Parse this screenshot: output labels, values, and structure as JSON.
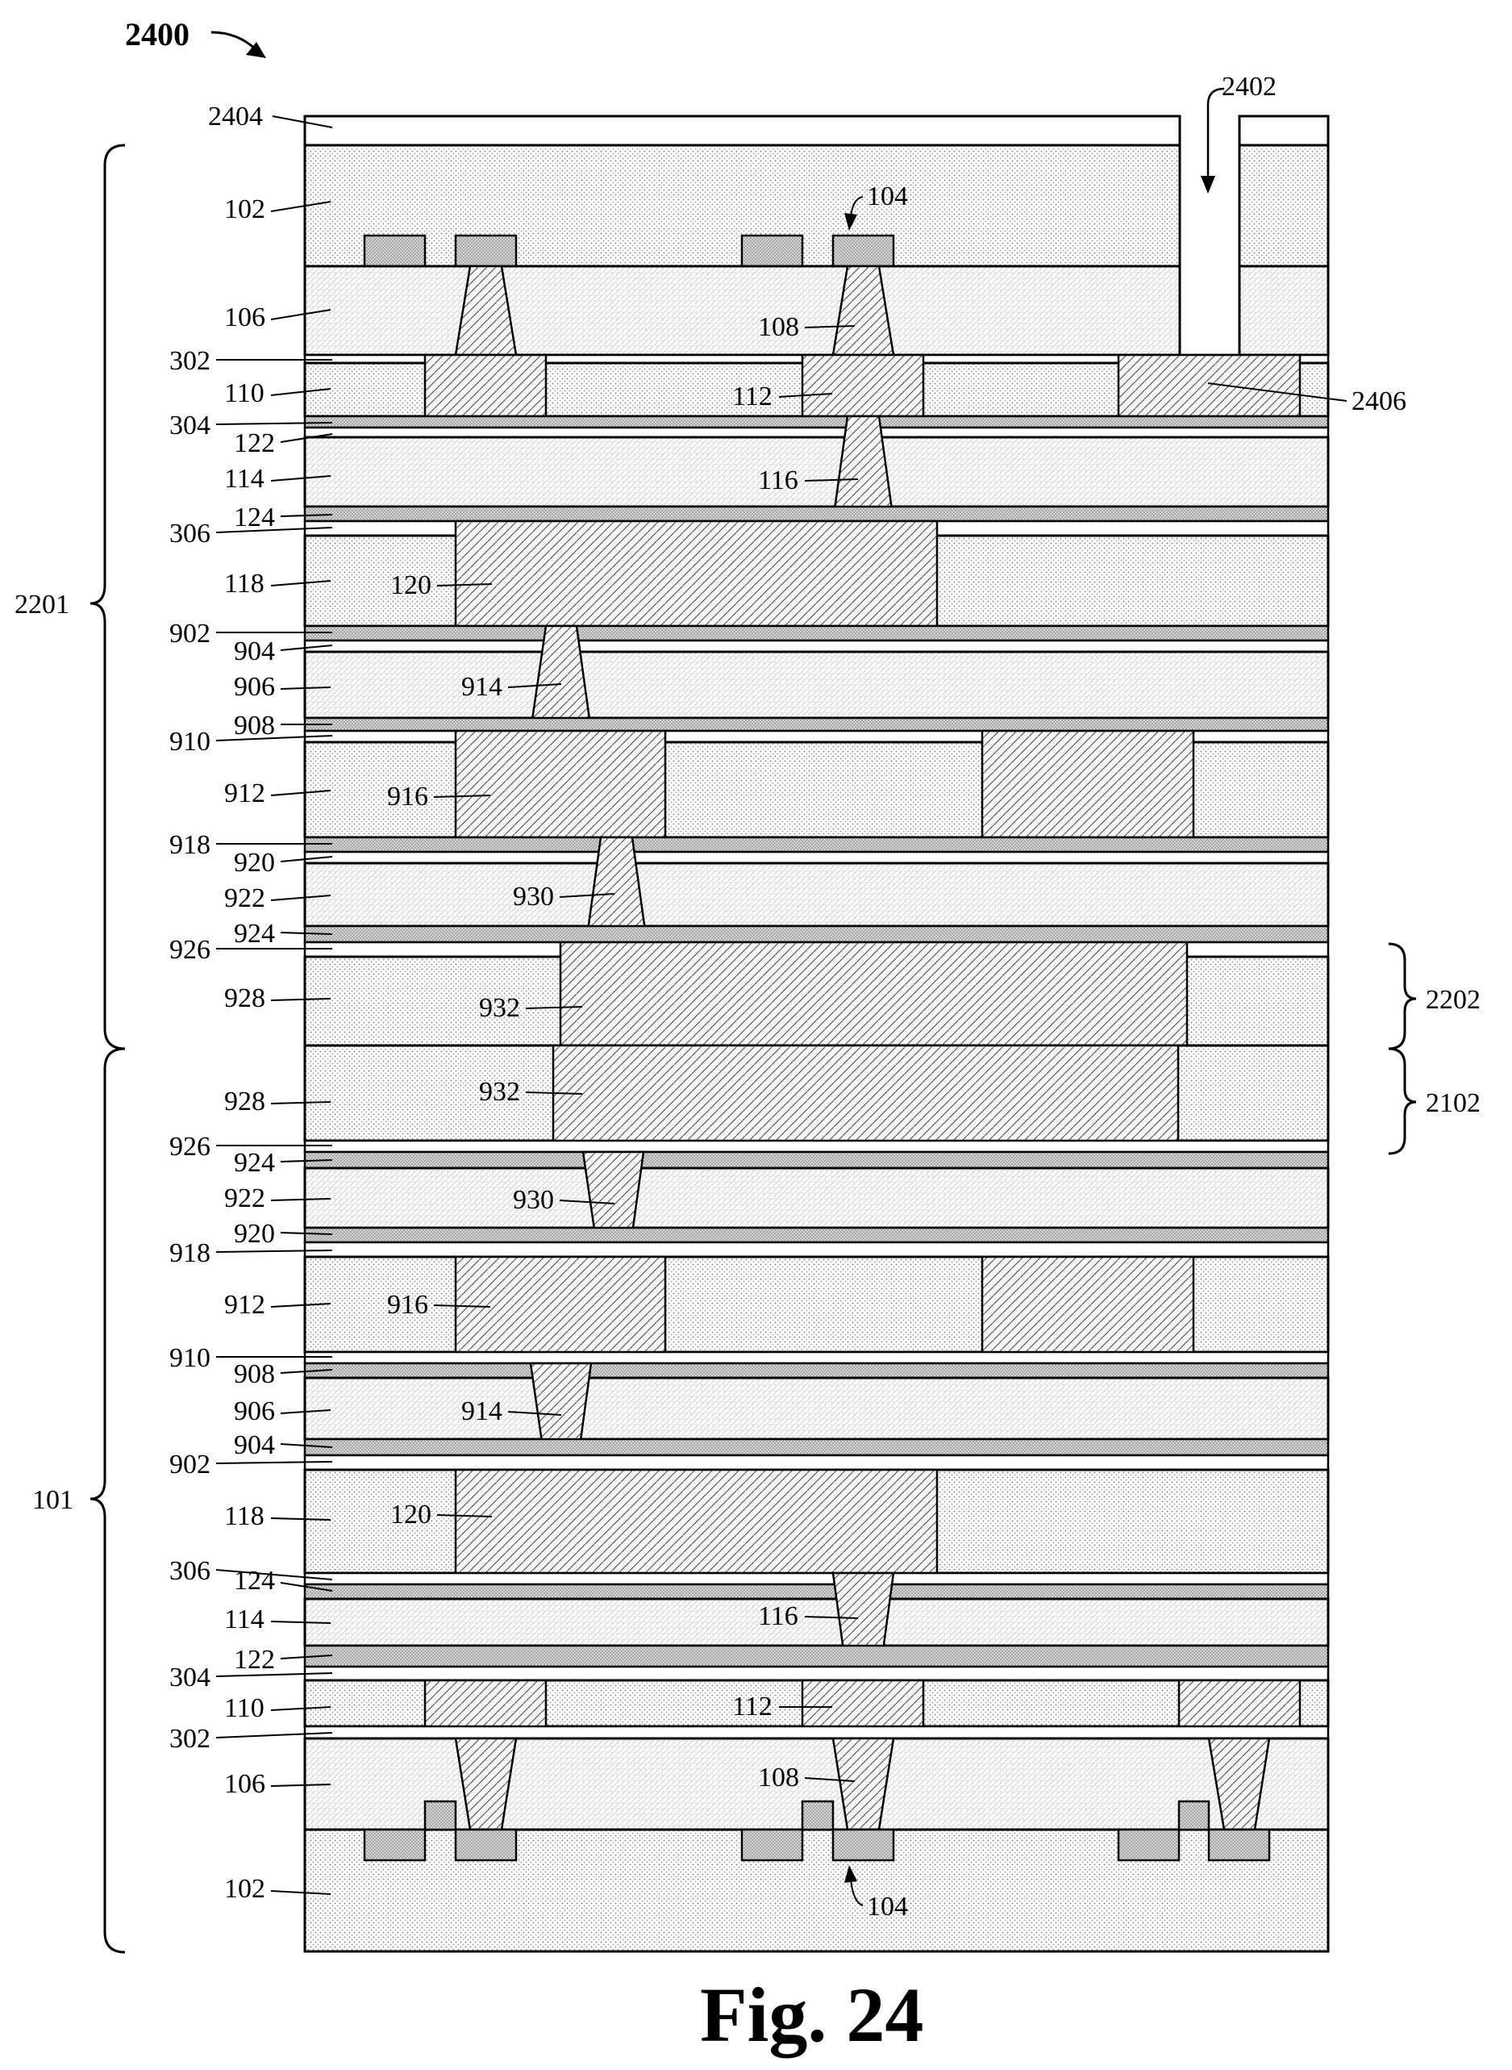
{
  "figure": {
    "number_label": "2400",
    "caption": "Fig. 24",
    "trench_label": "2402",
    "top_layer_label": "2404",
    "pad_label": "2406"
  },
  "brackets": {
    "upper": "2201",
    "lower": "101",
    "right_upper": "2202",
    "right_lower": "2102"
  },
  "layers": {
    "substrate": "102",
    "device": "104",
    "ild": "106",
    "contact": "108",
    "etch_stop_a": "302",
    "imd_1": "110",
    "metal_1": "112",
    "etch_stop_b": "304",
    "cap_1": "122",
    "imd_2": "114",
    "via_1": "116",
    "cap_2": "124",
    "etch_stop_c": "306",
    "imd_3": "118",
    "metal_2": "120",
    "layer_902": "902",
    "layer_904": "904",
    "layer_906": "906",
    "via_914": "914",
    "layer_908": "908",
    "layer_910": "910",
    "layer_912": "912",
    "metal_916": "916",
    "layer_918": "918",
    "layer_920": "920",
    "layer_922": "922",
    "via_930": "930",
    "layer_924": "924",
    "layer_926": "926",
    "layer_928": "928",
    "bond_932": "932"
  }
}
